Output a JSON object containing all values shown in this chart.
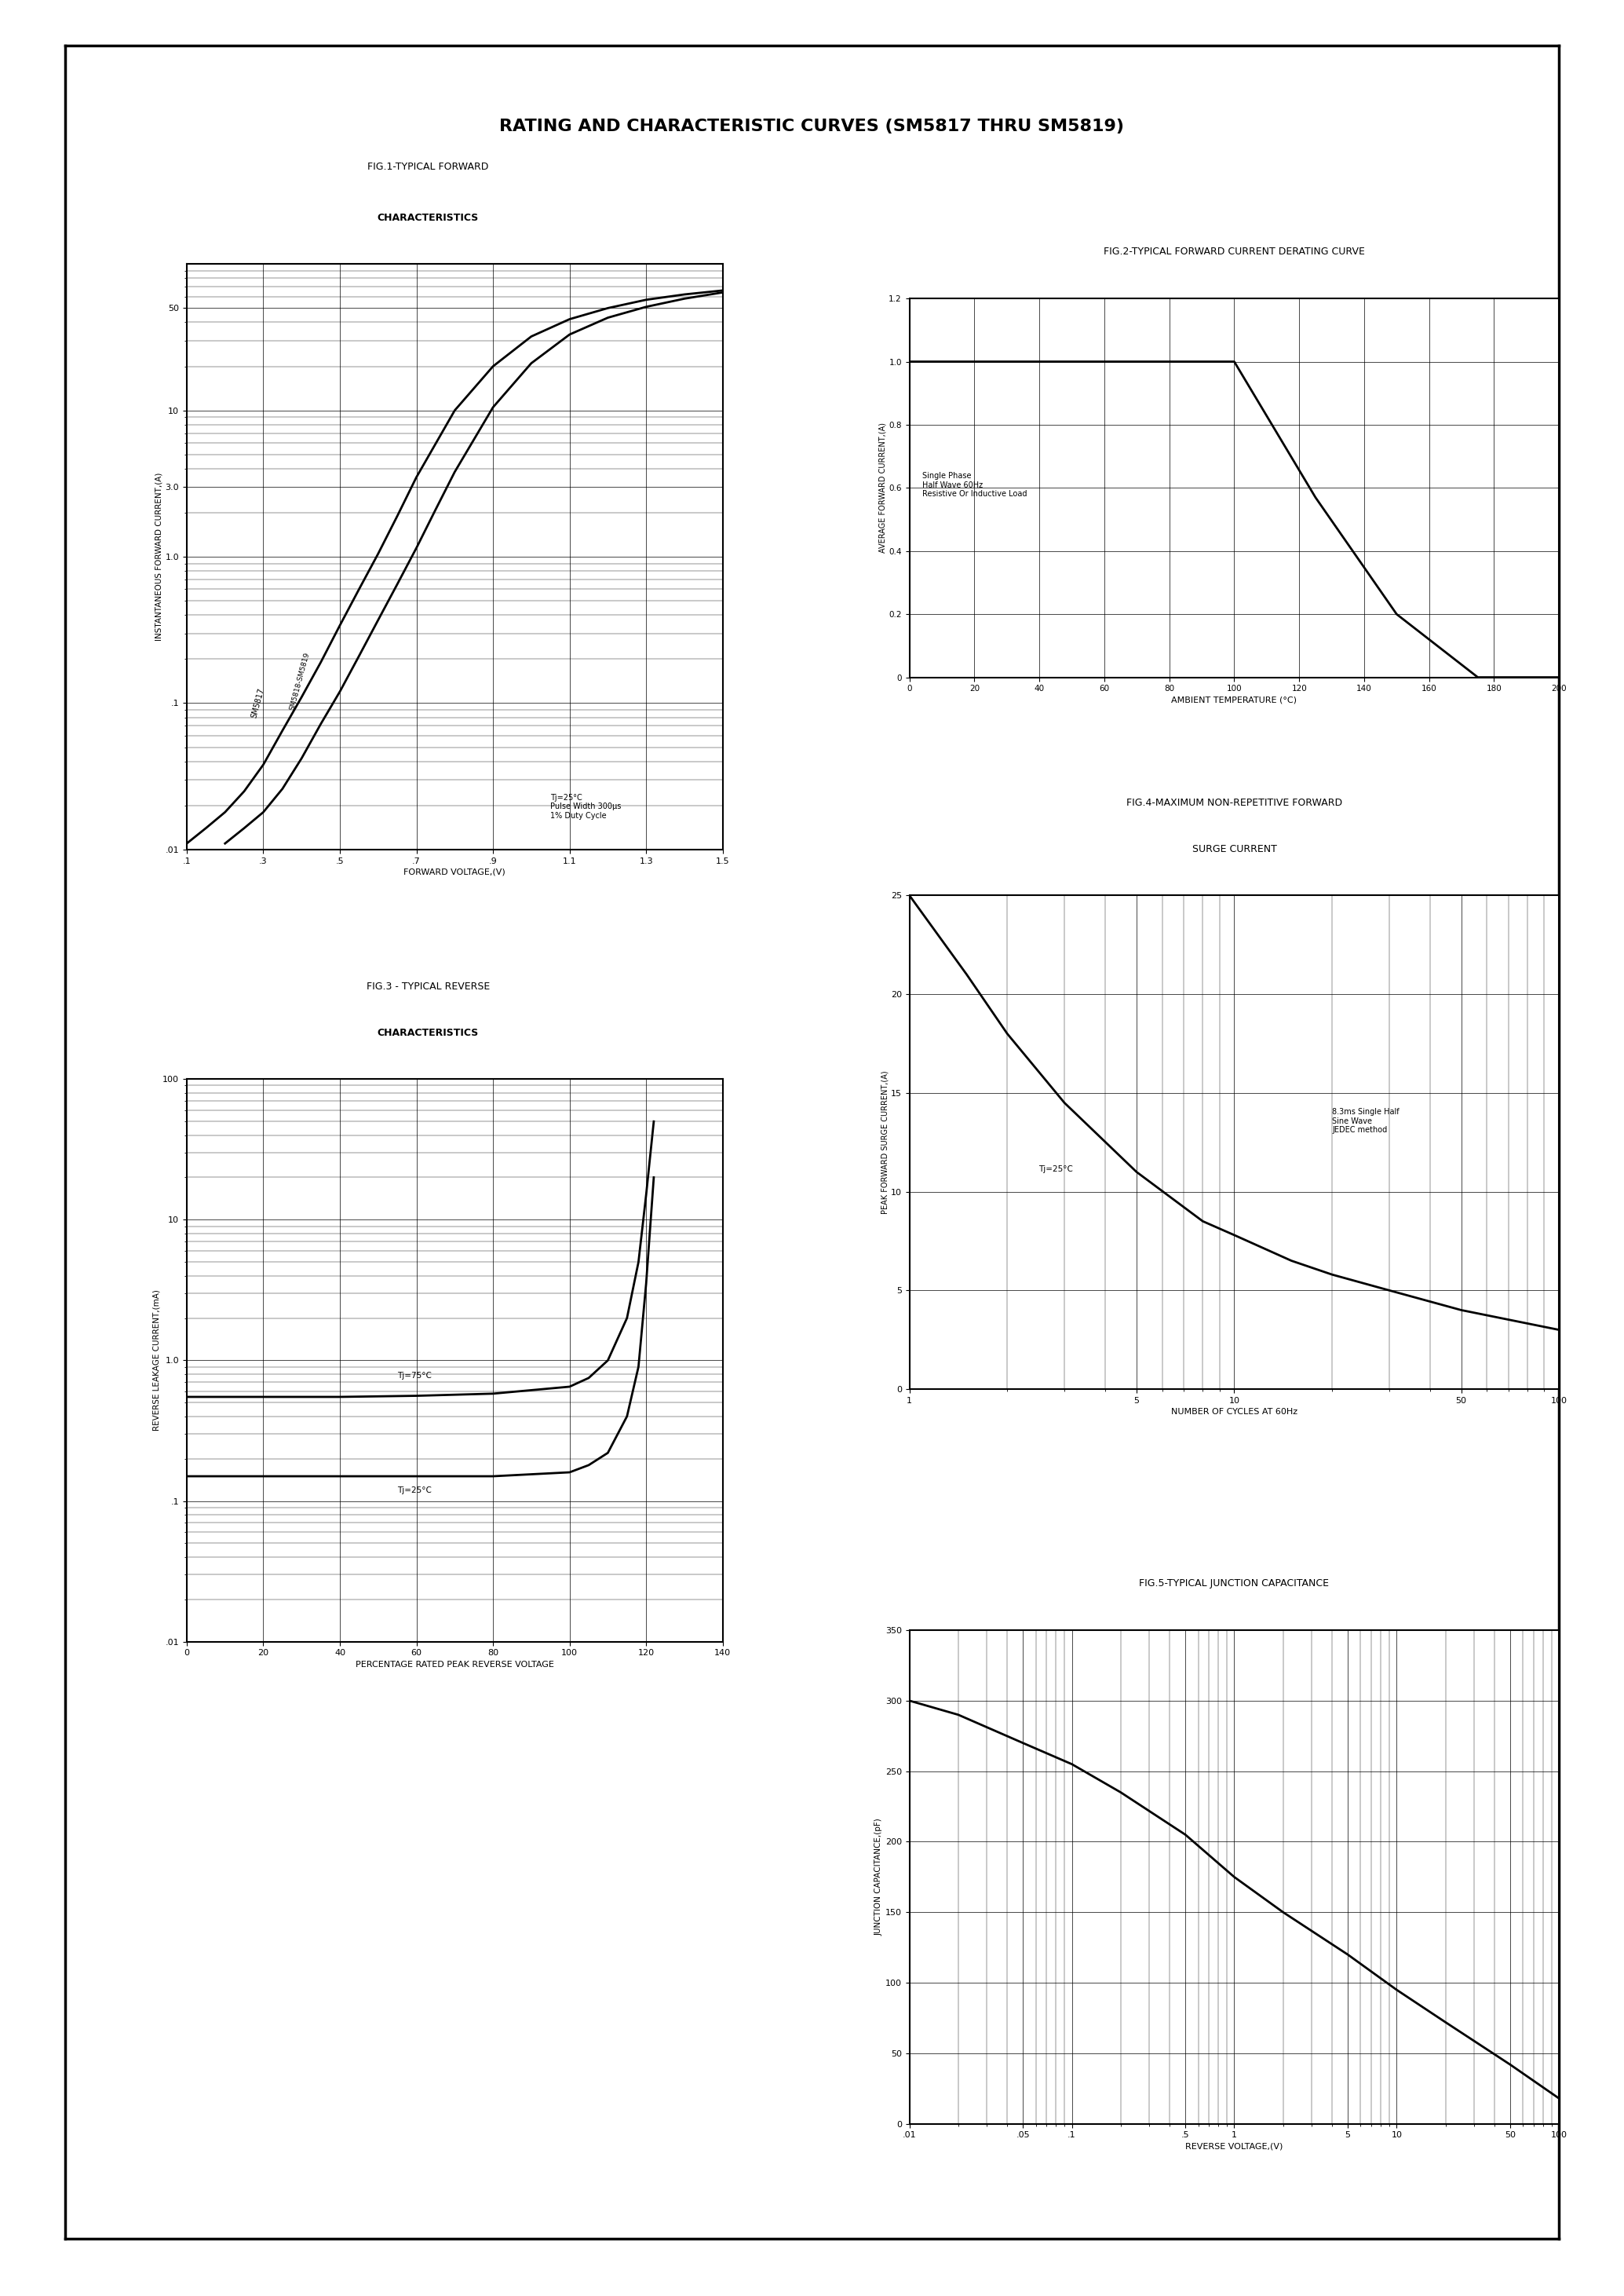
{
  "title": "RATING AND CHARACTERISTIC CURVES (SM5817 THRU SM5819)",
  "fig1_title1": "FIG.1-TYPICAL FORWARD",
  "fig1_title2": "CHARACTERISTICS",
  "fig2_title": "FIG.2-TYPICAL FORWARD CURRENT DERATING CURVE",
  "fig3_title1": "FIG.3 - TYPICAL REVERSE",
  "fig3_title2": "CHARACTERISTICS",
  "fig4_title1": "FIG.4-MAXIMUM NON-REPETITIVE FORWARD",
  "fig4_title2": "SURGE CURRENT",
  "fig5_title": "FIG.5-TYPICAL JUNCTION CAPACITANCE",
  "fig1_xlabel": "FORWARD VOLTAGE,(V)",
  "fig1_ylabel": "INSTANTANEOUS FORWARD CURRENT,(A)",
  "fig2_xlabel": "AMBIENT TEMPERATURE (°C)",
  "fig2_ylabel": "AVERAGE FORWARD CURRENT,(A)",
  "fig3_xlabel": "PERCENTAGE RATED PEAK REVERSE VOLTAGE",
  "fig3_ylabel": "REVERSE LEAKAGE CURRENT,(mA)",
  "fig4_xlabel": "NUMBER OF CYCLES AT 60Hz",
  "fig4_ylabel": "PEAK FORWARD SURGE CURRENT,(A)",
  "fig5_xlabel": "REVERSE VOLTAGE,(V)",
  "fig5_ylabel": "JUNCTION CAPACITANCE,(pF)",
  "background_color": "#ffffff",
  "line_color": "#000000"
}
